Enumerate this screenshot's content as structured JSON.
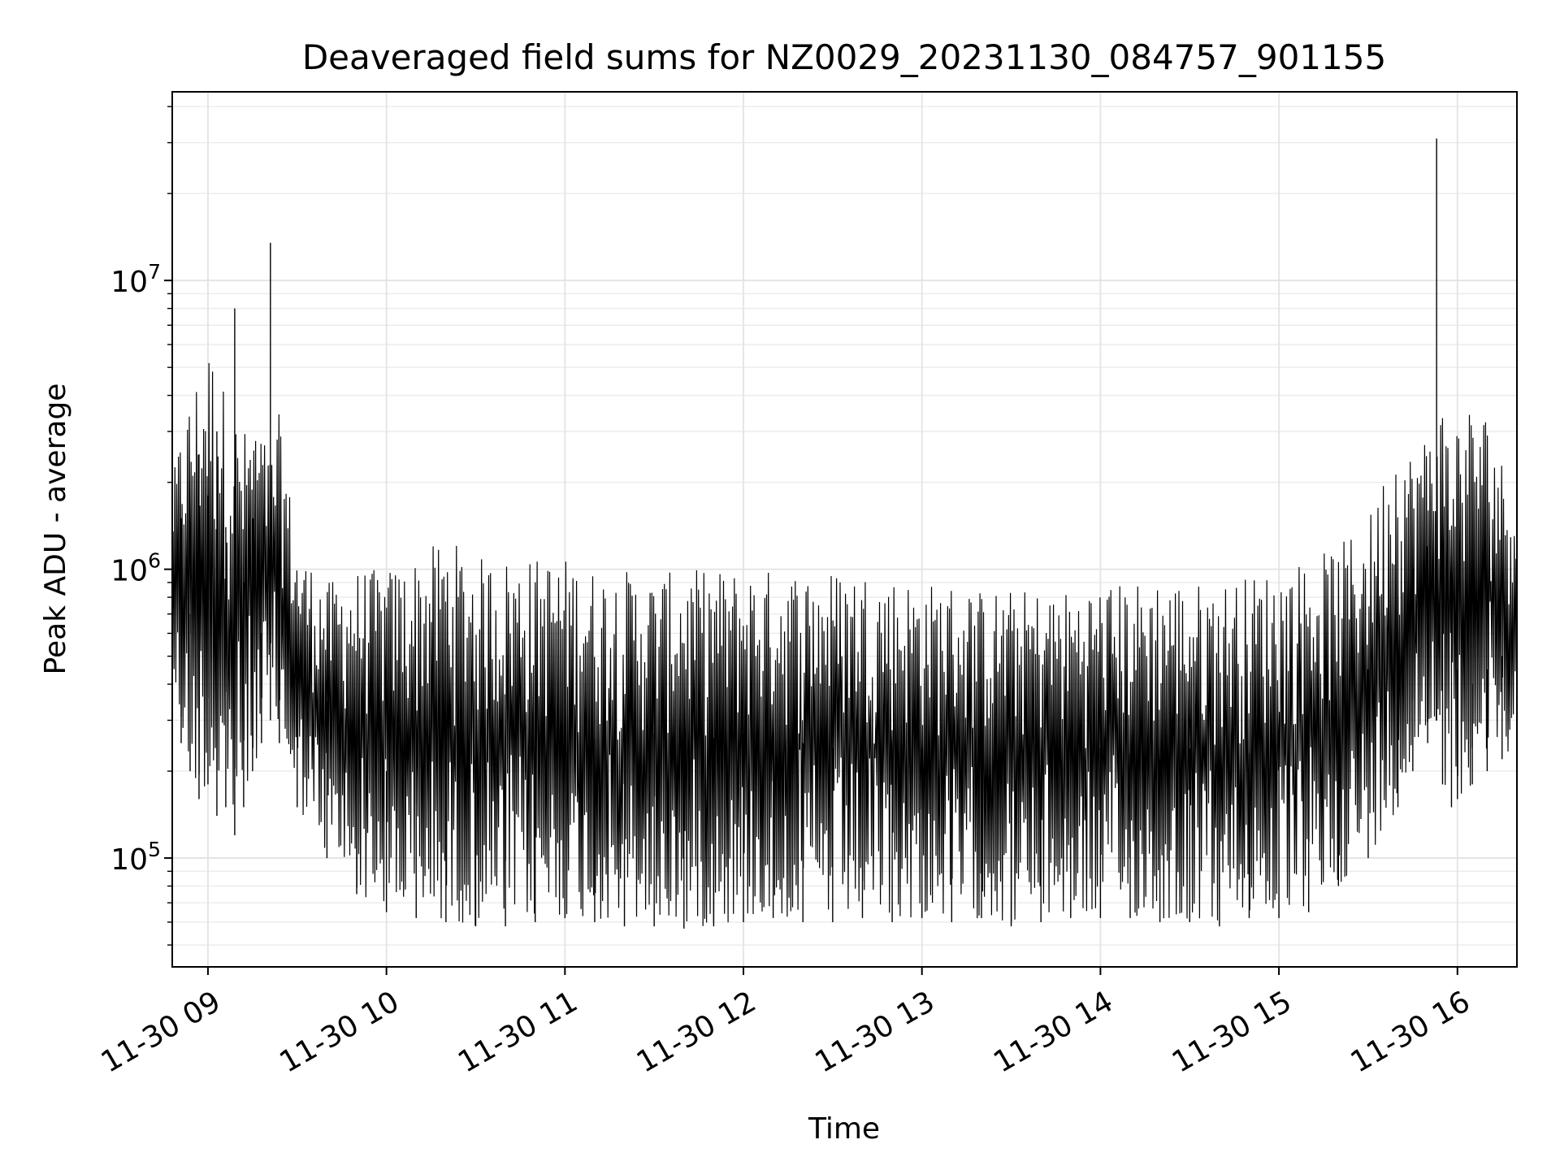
{
  "chart_data": {
    "type": "line",
    "title": "Deaveraged field sums for NZ0029_20231130_084757_901155",
    "xlabel": "Time",
    "ylabel": "Peak ADU - average",
    "yscale": "log",
    "ylim": [
      42000,
      45000000
    ],
    "xlim": [
      "2023-11-30 08:48",
      "2023-11-30 16:20"
    ],
    "grid": true,
    "x_ticks": [
      {
        "t": "2023-11-30 09:00",
        "label": "11-30 09"
      },
      {
        "t": "2023-11-30 10:00",
        "label": "11-30 10"
      },
      {
        "t": "2023-11-30 11:00",
        "label": "11-30 11"
      },
      {
        "t": "2023-11-30 12:00",
        "label": "11-30 12"
      },
      {
        "t": "2023-11-30 13:00",
        "label": "11-30 13"
      },
      {
        "t": "2023-11-30 14:00",
        "label": "11-30 14"
      },
      {
        "t": "2023-11-30 15:00",
        "label": "11-30 15"
      },
      {
        "t": "2023-11-30 16:00",
        "label": "11-30 16"
      }
    ],
    "y_ticks": [
      {
        "value": 100000,
        "base": "10",
        "exp": "5"
      },
      {
        "value": 1000000,
        "base": "10",
        "exp": "6"
      },
      {
        "value": 10000000,
        "base": "10",
        "exp": "7"
      }
    ],
    "series": [
      {
        "color": "#000000",
        "x": [
          "2023-11-30 08:48",
          "2023-11-30 08:51",
          "2023-11-30 08:54",
          "2023-11-30 08:57",
          "2023-11-30 09:00",
          "2023-11-30 09:03",
          "2023-11-30 09:06",
          "2023-11-30 09:09",
          "2023-11-30 09:12",
          "2023-11-30 09:15",
          "2023-11-30 09:18",
          "2023-11-30 09:21",
          "2023-11-30 09:24",
          "2023-11-30 09:30",
          "2023-11-30 09:40",
          "2023-11-30 09:50",
          "2023-11-30 10:00",
          "2023-11-30 10:10",
          "2023-11-30 10:20",
          "2023-11-30 10:30",
          "2023-11-30 10:40",
          "2023-11-30 10:50",
          "2023-11-30 11:00",
          "2023-11-30 11:10",
          "2023-11-30 11:20",
          "2023-11-30 11:30",
          "2023-11-30 11:40",
          "2023-11-30 11:50",
          "2023-11-30 12:00",
          "2023-11-30 12:10",
          "2023-11-30 12:20",
          "2023-11-30 12:30",
          "2023-11-30 12:40",
          "2023-11-30 12:50",
          "2023-11-30 13:00",
          "2023-11-30 13:10",
          "2023-11-30 13:20",
          "2023-11-30 13:30",
          "2023-11-30 13:40",
          "2023-11-30 13:50",
          "2023-11-30 14:00",
          "2023-11-30 14:10",
          "2023-11-30 14:20",
          "2023-11-30 14:30",
          "2023-11-30 14:40",
          "2023-11-30 14:50",
          "2023-11-30 15:00",
          "2023-11-30 15:10",
          "2023-11-30 15:20",
          "2023-11-30 15:30",
          "2023-11-30 15:40",
          "2023-11-30 15:45",
          "2023-11-30 15:50",
          "2023-11-30 15:53",
          "2023-11-30 15:55",
          "2023-11-30 15:58",
          "2023-11-30 16:00",
          "2023-11-30 16:05",
          "2023-11-30 16:10",
          "2023-11-30 16:15",
          "2023-11-30 16:20"
        ],
        "y": [
          1200000,
          1500000,
          700000,
          2500000,
          1800000,
          3000000,
          1400000,
          8000000,
          900000,
          1500000,
          600000,
          13500000,
          1000000,
          500000,
          350000,
          250000,
          200000,
          230000,
          250000,
          220000,
          250000,
          270000,
          290000,
          260000,
          240000,
          270000,
          280000,
          260000,
          270000,
          270000,
          250000,
          240000,
          240000,
          230000,
          240000,
          230000,
          230000,
          220000,
          210000,
          220000,
          240000,
          230000,
          220000,
          240000,
          220000,
          230000,
          260000,
          300000,
          400000,
          450000,
          800000,
          1000000,
          1200000,
          31000000,
          2000000,
          900000,
          450000,
          400000,
          450000,
          500000,
          550000
        ],
        "y_low": [
          400000,
          250000,
          200000,
          160000,
          180000,
          140000,
          150000,
          120000,
          150000,
          200000,
          250000,
          300000,
          250000,
          150000,
          100000,
          75000,
          65000,
          62000,
          60000,
          58000,
          58000,
          60000,
          62000,
          60000,
          58000,
          58000,
          57000,
          58000,
          60000,
          62000,
          60000,
          60000,
          62000,
          60000,
          62000,
          60000,
          62000,
          58000,
          60000,
          62000,
          62000,
          62000,
          60000,
          60000,
          58000,
          62000,
          62000,
          65000,
          80000,
          100000,
          150000,
          200000,
          250000,
          300000,
          180000,
          150000,
          160000,
          180000,
          200000,
          220000,
          250000
        ],
        "y_high": [
          2000000,
          3000000,
          4000000,
          5000000,
          6000000,
          5500000,
          4000000,
          3500000,
          3000000,
          3500000,
          3000000,
          2500000,
          3500000,
          1200000,
          900000,
          1000000,
          1000000,
          1100000,
          1300000,
          1100000,
          1100000,
          1100000,
          1100000,
          1000000,
          1000000,
          950000,
          1000000,
          1000000,
          1000000,
          1000000,
          1000000,
          1000000,
          1000000,
          950000,
          900000,
          900000,
          850000,
          850000,
          850000,
          850000,
          900000,
          900000,
          950000,
          900000,
          900000,
          950000,
          1000000,
          1100000,
          1200000,
          1500000,
          3000000,
          2500000,
          3000000,
          3500000,
          3800000,
          3000000,
          3500000,
          3800000,
          3500000,
          2400000,
          2000000
        ]
      }
    ]
  }
}
